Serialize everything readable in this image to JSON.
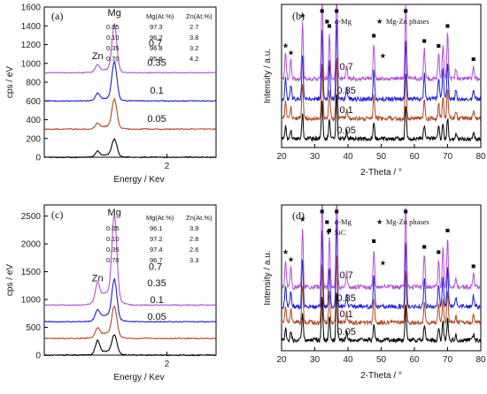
{
  "chart_data": [
    {
      "panel": "(a)",
      "type": "line",
      "xlabel": "Energy / Kev",
      "ylabel": "cps / eV",
      "xticks": [
        "2"
      ],
      "ylim": [
        0,
        1600
      ],
      "yticks": [
        0,
        200,
        400,
        600,
        800,
        1000,
        1200,
        1400,
        1600
      ],
      "peak_labels": [
        "Mg",
        "Zn"
      ],
      "table": {
        "columns": [
          "",
          "Mg(At.%)",
          "Zn(At.%)"
        ],
        "rows": [
          [
            "0.05",
            "97.3",
            "2.7"
          ],
          [
            "0.10",
            "96.2",
            "3.8"
          ],
          [
            "0.35",
            "96.8",
            "3.2"
          ],
          [
            "0.70",
            "95.8",
            "4.2"
          ]
        ]
      },
      "series": [
        {
          "name": "0.05",
          "color": "#000000",
          "baseline": 0
        },
        {
          "name": "0.1",
          "color": "#b3471e",
          "baseline": 300
        },
        {
          "name": "0.35",
          "color": "#1d1dd9",
          "baseline": 600
        },
        {
          "name": "0.7",
          "color": "#b44fd8",
          "baseline": 900
        }
      ]
    },
    {
      "panel": "(b)",
      "type": "line",
      "xlabel": "2-Theta / °",
      "ylabel": "Intensity / a.u.",
      "xlim": [
        20,
        80
      ],
      "xticks": [
        20,
        30,
        40,
        50,
        60,
        70,
        80
      ],
      "legend": [
        {
          "marker": "■",
          "label": "α-Mg"
        },
        {
          "marker": "★",
          "label": "Mg-Zn phases"
        }
      ],
      "series": [
        {
          "name": "0.05",
          "color": "#000000"
        },
        {
          "name": "0.1",
          "color": "#b3471e"
        },
        {
          "name": "0.35",
          "color": "#1d1dd9"
        },
        {
          "name": "0.7",
          "color": "#b44fd8"
        }
      ]
    },
    {
      "panel": "(c)",
      "type": "line",
      "xlabel": "Energy / Kev",
      "ylabel": "cps / eV",
      "xticks": [
        "2"
      ],
      "ylim": [
        0,
        2700
      ],
      "yticks": [
        0,
        500,
        1000,
        1500,
        2000,
        2500
      ],
      "peak_labels": [
        "Mg",
        "Zn"
      ],
      "table": {
        "columns": [
          "",
          "Mg(At.%)",
          "Zn(At.%)"
        ],
        "rows": [
          [
            "0.05",
            "96.1",
            "3.9"
          ],
          [
            "0.10",
            "97.2",
            "2.8"
          ],
          [
            "0.35",
            "97.4",
            "2.6"
          ],
          [
            "0.70",
            "96.7",
            "3.3"
          ]
        ]
      },
      "series": [
        {
          "name": "0.05",
          "color": "#000000",
          "baseline": 0
        },
        {
          "name": "0.1",
          "color": "#b3471e",
          "baseline": 300
        },
        {
          "name": "0.35",
          "color": "#1d1dd9",
          "baseline": 600
        },
        {
          "name": "0.7",
          "color": "#b44fd8",
          "baseline": 900
        }
      ]
    },
    {
      "panel": "(d)",
      "type": "line",
      "xlabel": "2-Theta / °",
      "ylabel": "Intensity / a.u.",
      "xlim": [
        20,
        80
      ],
      "xticks": [
        20,
        30,
        40,
        50,
        60,
        70,
        80
      ],
      "legend": [
        {
          "marker": "■",
          "label": "α-Mg"
        },
        {
          "marker": "★",
          "label": "Mg-Zn phases"
        },
        {
          "marker": "▼",
          "label": "SiC"
        }
      ],
      "series": [
        {
          "name": "0.05",
          "color": "#000000"
        },
        {
          "name": "0.1",
          "color": "#b3471e"
        },
        {
          "name": "0.35",
          "color": "#1d1dd9"
        },
        {
          "name": "0.7",
          "color": "#b44fd8"
        }
      ]
    }
  ]
}
